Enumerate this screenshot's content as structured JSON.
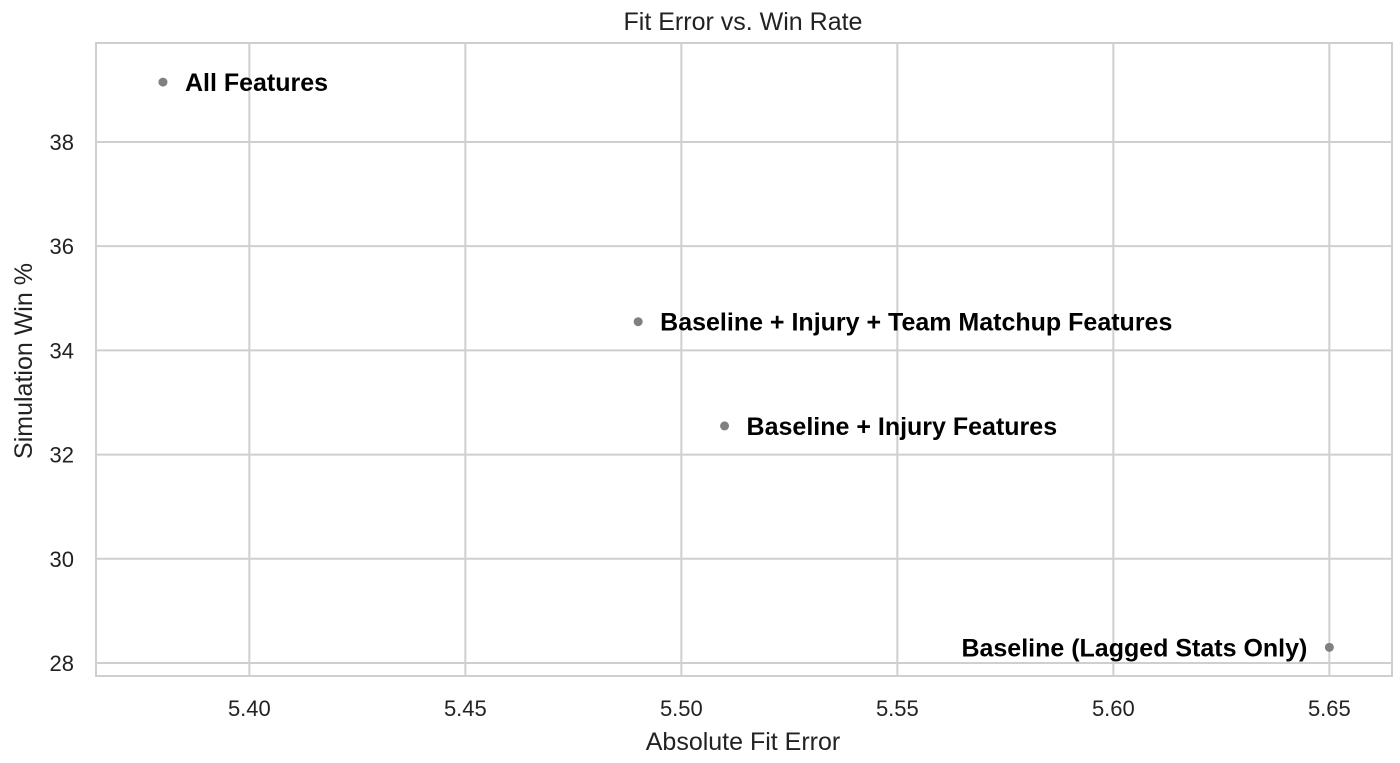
{
  "chart_data": {
    "type": "scatter",
    "title": "Fit Error vs. Win Rate",
    "xlabel": "Absolute Fit Error",
    "ylabel": "Simulation Win %",
    "xlim": [
      5.3645,
      5.6645
    ],
    "ylim": [
      27.75,
      39.9
    ],
    "xticks": [
      5.4,
      5.45,
      5.5,
      5.55,
      5.6,
      5.65
    ],
    "xtick_labels": [
      "5.40",
      "5.45",
      "5.50",
      "5.55",
      "5.60",
      "5.65"
    ],
    "yticks": [
      28,
      30,
      32,
      34,
      36,
      38
    ],
    "ytick_labels": [
      "28",
      "30",
      "32",
      "34",
      "36",
      "38"
    ],
    "grid": true,
    "marker_color": "#808080",
    "points": [
      {
        "x": 5.38,
        "y": 39.15,
        "label": "All Features",
        "label_side": "right"
      },
      {
        "x": 5.49,
        "y": 34.55,
        "label": "Baseline + Injury + Team Matchup Features",
        "label_side": "right"
      },
      {
        "x": 5.51,
        "y": 32.55,
        "label": "Baseline + Injury Features",
        "label_side": "right"
      },
      {
        "x": 5.65,
        "y": 28.3,
        "label": "Baseline (Lagged Stats Only)",
        "label_side": "left"
      }
    ]
  }
}
